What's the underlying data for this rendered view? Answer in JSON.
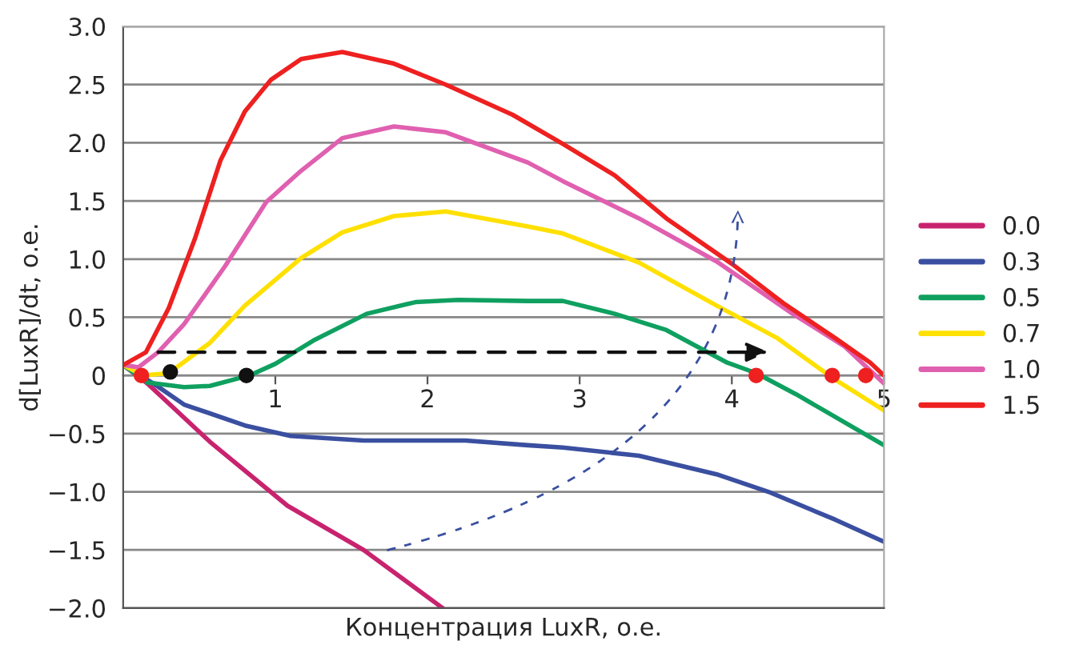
{
  "chart_data": {
    "type": "line",
    "xlabel": "Концентрация LuxR, о.е.",
    "ylabel": "d[LuxR]/dt, о.е.",
    "xlim": [
      0,
      5
    ],
    "xticks": [
      1,
      2,
      3,
      4,
      5
    ],
    "ylim": [
      -2,
      3
    ],
    "yticks": [
      {
        "value": 3,
        "label": "3.0"
      },
      {
        "value": 2.5,
        "label": "2.5"
      },
      {
        "value": 2,
        "label": "2.0"
      },
      {
        "value": 1.5,
        "label": "1.5"
      },
      {
        "value": 1,
        "label": "1.0"
      },
      {
        "value": 0.5,
        "label": "0.5"
      },
      0,
      {
        "value": -0.5,
        "label": "−0.5"
      },
      {
        "value": -1,
        "label": "−1.0"
      },
      {
        "value": -1.5,
        "label": "−1.5"
      },
      {
        "value": -2,
        "label": "−2.0"
      }
    ],
    "grid": "y",
    "legend": "right",
    "marker": "none",
    "line_style": "solid",
    "series": [
      {
        "name": "0.0",
        "color": "#c8236e",
        "x": [
          0,
          0.16,
          0.57,
          1.08,
          1.58,
          2.1
        ],
        "values": [
          0.09,
          -0.07,
          -0.57,
          -1.12,
          -1.5,
          -2.0
        ]
      },
      {
        "name": "0.3",
        "color": "#3a4fa0",
        "x": [
          0,
          0.2,
          0.4,
          0.8,
          1.1,
          1.58,
          2.25,
          2.66,
          2.89,
          3.39,
          3.9,
          4.24,
          4.68,
          5.0
        ],
        "values": [
          0.09,
          -0.07,
          -0.25,
          -0.43,
          -0.52,
          -0.56,
          -0.56,
          -0.6,
          -0.62,
          -0.69,
          -0.85,
          -1.0,
          -1.24,
          -1.43
        ]
      },
      {
        "name": "0.5",
        "color": "#0fa060",
        "x": [
          0,
          0.16,
          0.4,
          0.57,
          0.83,
          1.0,
          1.25,
          1.6,
          1.92,
          2.2,
          2.66,
          2.89,
          3.23,
          3.57,
          3.97,
          4.16,
          4.42,
          5.0
        ],
        "values": [
          0.09,
          -0.06,
          -0.1,
          -0.09,
          0,
          0.1,
          0.3,
          0.53,
          0.63,
          0.65,
          0.64,
          0.64,
          0.53,
          0.39,
          0.11,
          0.02,
          -0.16,
          -0.6
        ]
      },
      {
        "name": "0.7",
        "color": "#ffe000",
        "x": [
          0,
          0.13,
          0.3,
          0.57,
          0.8,
          1.17,
          1.44,
          1.78,
          2.12,
          2.66,
          2.89,
          3.39,
          3.9,
          4.3,
          4.66,
          5.0
        ],
        "values": [
          0.09,
          0,
          0.02,
          0.28,
          0.6,
          1.01,
          1.23,
          1.37,
          1.41,
          1.28,
          1.22,
          0.97,
          0.6,
          0.32,
          -0.02,
          -0.3
        ]
      },
      {
        "name": "1.0",
        "color": "#e060b0",
        "x": [
          0,
          0.1,
          0.23,
          0.4,
          0.67,
          0.94,
          1.17,
          1.44,
          1.78,
          2.12,
          2.66,
          2.89,
          3.39,
          3.9,
          4.4,
          4.74,
          5.0
        ],
        "values": [
          0.09,
          0.07,
          0.2,
          0.44,
          0.94,
          1.49,
          1.76,
          2.04,
          2.14,
          2.09,
          1.83,
          1.67,
          1.35,
          0.98,
          0.53,
          0.25,
          -0.07
        ]
      },
      {
        "name": "1.5",
        "color": "#ee2020",
        "x": [
          0,
          0.15,
          0.3,
          0.47,
          0.64,
          0.8,
          0.97,
          1.17,
          1.44,
          1.78,
          2.12,
          2.56,
          2.89,
          3.23,
          3.57,
          4.0,
          4.34,
          4.68,
          4.91,
          5.0
        ],
        "values": [
          0.09,
          0.2,
          0.58,
          1.17,
          1.85,
          2.27,
          2.54,
          2.72,
          2.78,
          2.68,
          2.5,
          2.24,
          1.99,
          1.72,
          1.35,
          0.96,
          0.62,
          0.32,
          0.11,
          0
        ]
      },
      {
        "type": "scatter",
        "marker": "circle",
        "x": [
          0.12,
          4.16,
          4.66,
          4.88,
          0.31,
          0.81
        ],
        "values": [
          0,
          0,
          0,
          0,
          0.03,
          0
        ],
        "colors": [
          "#ee2020",
          "#ee2020",
          "#ee2020",
          "#ee2020",
          "#111111",
          "#111111"
        ]
      }
    ]
  }
}
